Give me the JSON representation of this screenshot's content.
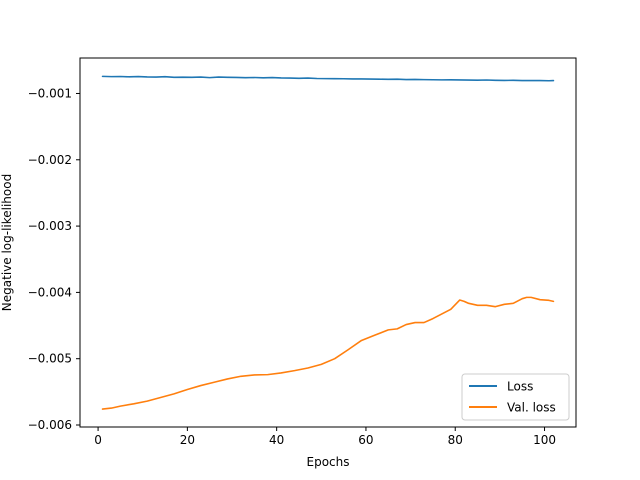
{
  "chart_data": {
    "type": "line",
    "title": "",
    "xlabel": "Epochs",
    "ylabel": "Negative log-likelihood",
    "xlim": [
      -4.05,
      107.05
    ],
    "ylim": [
      -0.00603,
      -0.000465
    ],
    "xticks": [
      0,
      20,
      40,
      60,
      80,
      100
    ],
    "xtick_labels": [
      "0",
      "20",
      "40",
      "60",
      "80",
      "100"
    ],
    "yticks": [
      -0.006,
      -0.005,
      -0.004,
      -0.003,
      -0.002,
      -0.001
    ],
    "ytick_labels": [
      "−0.006",
      "−0.005",
      "−0.004",
      "−0.003",
      "−0.002",
      "−0.001"
    ],
    "grid": false,
    "legend_position": "lower-right",
    "series": [
      {
        "name": "Loss",
        "color": "#1f77b4",
        "x": [
          1,
          3,
          5,
          7,
          9,
          11,
          13,
          15,
          17,
          19,
          21,
          23,
          25,
          27,
          29,
          31,
          33,
          35,
          37,
          39,
          41,
          43,
          45,
          47,
          49,
          51,
          53,
          55,
          57,
          59,
          61,
          63,
          65,
          67,
          69,
          71,
          73,
          75,
          77,
          79,
          81,
          83,
          85,
          87,
          89,
          91,
          93,
          95,
          97,
          99,
          101,
          102
        ],
        "values": [
          -0.000742,
          -0.000746,
          -0.000744,
          -0.000749,
          -0.000745,
          -0.000751,
          -0.000752,
          -0.000747,
          -0.000757,
          -0.000755,
          -0.000756,
          -0.000752,
          -0.000761,
          -0.000753,
          -0.000757,
          -0.000758,
          -0.000762,
          -0.000759,
          -0.000764,
          -0.00076,
          -0.000765,
          -0.000767,
          -0.000772,
          -0.000768,
          -0.000774,
          -0.000776,
          -0.000777,
          -0.000778,
          -0.000781,
          -0.00078,
          -0.000782,
          -0.000785,
          -0.000786,
          -0.000785,
          -0.00079,
          -0.000788,
          -0.000791,
          -0.000793,
          -0.000795,
          -0.000794,
          -0.000796,
          -0.000798,
          -0.0008,
          -0.000797,
          -0.000801,
          -0.000803,
          -0.000802,
          -0.000806,
          -0.000805,
          -0.000806,
          -0.000808,
          -0.000806
        ]
      },
      {
        "name": "Val. loss",
        "color": "#ff7f0e",
        "x": [
          1,
          3,
          5,
          8,
          11,
          14,
          17,
          20,
          23,
          26,
          29,
          32,
          35,
          38,
          41,
          44,
          47,
          50,
          53,
          56,
          59,
          62,
          65,
          67,
          69,
          71,
          73,
          75,
          77,
          79,
          81,
          82,
          83,
          85,
          87,
          89,
          91,
          93,
          95,
          96,
          97,
          99,
          101,
          102
        ],
        "values": [
          -0.00576,
          -0.005745,
          -0.005715,
          -0.00568,
          -0.00564,
          -0.005585,
          -0.00553,
          -0.005465,
          -0.005405,
          -0.005355,
          -0.005305,
          -0.005265,
          -0.005245,
          -0.00524,
          -0.005215,
          -0.00518,
          -0.00514,
          -0.005085,
          -0.005,
          -0.004865,
          -0.004725,
          -0.004645,
          -0.004565,
          -0.00455,
          -0.004485,
          -0.004455,
          -0.004455,
          -0.004395,
          -0.004325,
          -0.004255,
          -0.004115,
          -0.004135,
          -0.004165,
          -0.004195,
          -0.004195,
          -0.004215,
          -0.00418,
          -0.004165,
          -0.004095,
          -0.004075,
          -0.004075,
          -0.00411,
          -0.00412,
          -0.004135
        ]
      }
    ]
  }
}
